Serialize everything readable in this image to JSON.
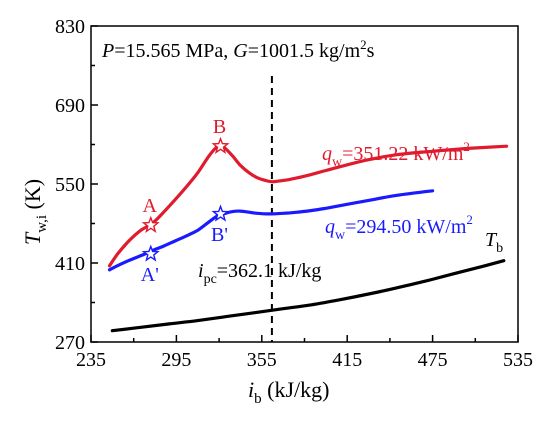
{
  "chart_data": {
    "type": "line",
    "title": "",
    "header": {
      "p_sym": "P",
      "p_val": "=15.565 MPa, ",
      "g_sym": "G",
      "g_val": "=1001.5 kg/m",
      "g_sup": "2",
      "g_tail": "s"
    },
    "xlabel": {
      "base": "i",
      "sub": "b",
      "unit": " (kJ/kg)"
    },
    "ylabel": {
      "base": "T",
      "sub": "w,i",
      "unit": " (K)"
    },
    "xlim": [
      235,
      535
    ],
    "ylim": [
      270,
      830
    ],
    "xticks": [
      "235",
      "295",
      "355",
      "415",
      "475",
      "535"
    ],
    "yticks": [
      "270",
      "410",
      "550",
      "690",
      "830"
    ],
    "grid": false,
    "legend": "none",
    "series": [
      {
        "color": "#e01b2d",
        "label": {
          "sym": "q",
          "sub": "w",
          "val": "=351.22 kW/m",
          "sup": "2"
        },
        "x": [
          248,
          254,
          262,
          270,
          278,
          286,
          294,
          302,
          310,
          318,
          324,
          328,
          334,
          340,
          346,
          352,
          358,
          362,
          366,
          372,
          380,
          390,
          400,
          415,
          430,
          450,
          475,
          500,
          527
        ],
        "y": [
          405,
          427,
          450,
          468,
          480,
          500,
          522,
          545,
          570,
          600,
          617,
          616,
          601,
          583,
          570,
          561,
          556,
          554,
          555,
          557,
          561,
          567,
          574,
          584,
          593,
          602,
          608,
          613,
          617
        ]
      },
      {
        "color": "#1a1aff",
        "label": {
          "sym": "q",
          "sub": "w",
          "val": "=294.50 kW/m",
          "sup": "2"
        },
        "x": [
          248,
          256,
          264,
          272,
          278,
          286,
          294,
          302,
          310,
          318,
          324,
          328,
          334,
          340,
          346,
          352,
          360,
          370,
          380,
          390,
          400,
          415,
          430,
          450,
          475
        ],
        "y": [
          398,
          408,
          417,
          425,
          432,
          440,
          449,
          458,
          468,
          483,
          494,
          497,
          501,
          502,
          500,
          498,
          497,
          498,
          500,
          503,
          507,
          514,
          521,
          530,
          538
        ]
      },
      {
        "color": "#000000",
        "label": {
          "sym": "T",
          "sub": "b"
        },
        "x": [
          250,
          270,
          290,
          310,
          330,
          350,
          370,
          390,
          410,
          430,
          450,
          470,
          490,
          510,
          525
        ],
        "y": [
          290,
          296,
          302,
          308,
          315,
          322,
          329,
          336,
          345,
          355,
          366,
          378,
          391,
          404,
          414
        ]
      }
    ],
    "markers": [
      {
        "label": "A",
        "x": 277,
        "y": 477,
        "color": "#e01b2d"
      },
      {
        "label": "B",
        "x": 326,
        "y": 617,
        "color": "#e01b2d"
      },
      {
        "label": "A'",
        "x": 277,
        "y": 426,
        "color": "#1a1aff"
      },
      {
        "label": "B'",
        "x": 326,
        "y": 497,
        "color": "#1a1aff"
      }
    ],
    "pc_line": {
      "x": 362.1,
      "label": {
        "sym": "i",
        "sub": "pc",
        "val": "=362.1 kJ/kg"
      }
    }
  }
}
